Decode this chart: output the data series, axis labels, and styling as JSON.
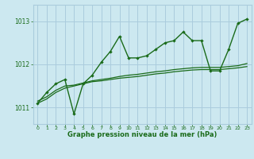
{
  "bg_color": "#cce8f0",
  "grid_color": "#aaccdd",
  "line_color": "#1a6b1a",
  "xlabel": "Graphe pression niveau de la mer (hPa)",
  "xlim": [
    -0.5,
    23.5
  ],
  "ylim": [
    1010.62,
    1013.38
  ],
  "yticks": [
    1011,
    1012,
    1013
  ],
  "xticks": [
    0,
    1,
    2,
    3,
    4,
    5,
    6,
    7,
    8,
    9,
    10,
    11,
    12,
    13,
    14,
    15,
    16,
    17,
    18,
    19,
    20,
    21,
    22,
    23
  ],
  "series_main": [
    [
      0,
      1011.1
    ],
    [
      1,
      1011.35
    ],
    [
      2,
      1011.55
    ],
    [
      3,
      1011.65
    ],
    [
      4,
      1010.85
    ],
    [
      5,
      1011.55
    ],
    [
      6,
      1011.75
    ],
    [
      7,
      1012.05
    ],
    [
      8,
      1012.3
    ],
    [
      9,
      1012.65
    ],
    [
      10,
      1012.15
    ],
    [
      11,
      1012.15
    ],
    [
      12,
      1012.2
    ],
    [
      13,
      1012.35
    ],
    [
      14,
      1012.5
    ],
    [
      15,
      1012.55
    ],
    [
      16,
      1012.75
    ],
    [
      17,
      1012.55
    ],
    [
      18,
      1012.55
    ],
    [
      19,
      1011.85
    ],
    [
      20,
      1011.85
    ],
    [
      21,
      1012.35
    ],
    [
      22,
      1012.95
    ],
    [
      23,
      1013.05
    ]
  ],
  "series_smooth1": [
    [
      0,
      1011.1
    ],
    [
      1,
      1011.2
    ],
    [
      2,
      1011.35
    ],
    [
      3,
      1011.45
    ],
    [
      4,
      1011.5
    ],
    [
      5,
      1011.55
    ],
    [
      6,
      1011.6
    ],
    [
      7,
      1011.62
    ],
    [
      8,
      1011.65
    ],
    [
      9,
      1011.68
    ],
    [
      10,
      1011.7
    ],
    [
      11,
      1011.72
    ],
    [
      12,
      1011.75
    ],
    [
      13,
      1011.78
    ],
    [
      14,
      1011.8
    ],
    [
      15,
      1011.83
    ],
    [
      16,
      1011.85
    ],
    [
      17,
      1011.87
    ],
    [
      18,
      1011.88
    ],
    [
      19,
      1011.88
    ],
    [
      20,
      1011.88
    ],
    [
      21,
      1011.9
    ],
    [
      22,
      1011.92
    ],
    [
      23,
      1011.95
    ]
  ],
  "series_smooth2": [
    [
      0,
      1011.15
    ],
    [
      1,
      1011.25
    ],
    [
      2,
      1011.4
    ],
    [
      3,
      1011.5
    ],
    [
      4,
      1011.52
    ],
    [
      5,
      1011.57
    ],
    [
      6,
      1011.62
    ],
    [
      7,
      1011.65
    ],
    [
      8,
      1011.68
    ],
    [
      9,
      1011.72
    ],
    [
      10,
      1011.75
    ],
    [
      11,
      1011.77
    ],
    [
      12,
      1011.8
    ],
    [
      13,
      1011.83
    ],
    [
      14,
      1011.85
    ],
    [
      15,
      1011.88
    ],
    [
      16,
      1011.9
    ],
    [
      17,
      1011.92
    ],
    [
      18,
      1011.93
    ],
    [
      19,
      1011.93
    ],
    [
      20,
      1011.93
    ],
    [
      21,
      1011.95
    ],
    [
      22,
      1011.97
    ],
    [
      23,
      1012.02
    ]
  ]
}
